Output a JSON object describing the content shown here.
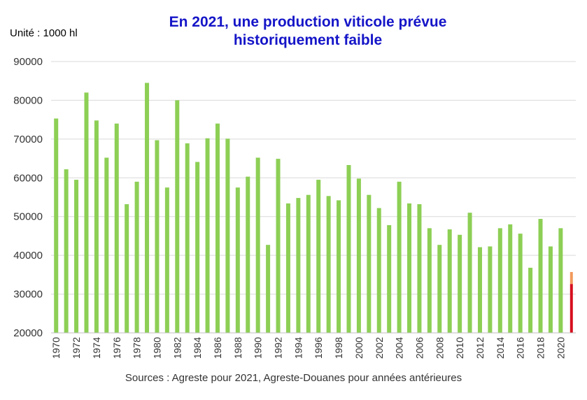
{
  "chart_data": {
    "type": "bar",
    "title_line1": "En 2021, une production viticole prévue",
    "title_line2": "historiquement faible",
    "unit_label": "Unité : 1000 hl",
    "source": "Sources : Agreste pour 2021, Agreste-Douanes pour années antérieures",
    "ylim": [
      20000,
      90000
    ],
    "yticks": [
      20000,
      30000,
      40000,
      50000,
      60000,
      70000,
      80000,
      90000
    ],
    "grid": true,
    "categories": [
      "1970",
      "1971",
      "1972",
      "1973",
      "1974",
      "1975",
      "1976",
      "1977",
      "1978",
      "1979",
      "1980",
      "1981",
      "1982",
      "1983",
      "1984",
      "1985",
      "1986",
      "1987",
      "1988",
      "1989",
      "1990",
      "1991",
      "1992",
      "1993",
      "1994",
      "1995",
      "1996",
      "1997",
      "1998",
      "1999",
      "2000",
      "2001",
      "2002",
      "2003",
      "2004",
      "2005",
      "2006",
      "2007",
      "2008",
      "2009",
      "2010",
      "2011",
      "2012",
      "2013",
      "2014",
      "2015",
      "2016",
      "2017",
      "2018",
      "2019",
      "2020",
      "2021"
    ],
    "xtick_labels": [
      "1970",
      "1972",
      "1974",
      "1976",
      "1978",
      "1980",
      "1982",
      "1984",
      "1986",
      "1988",
      "1990",
      "1992",
      "1994",
      "1996",
      "1998",
      "2000",
      "2002",
      "2004",
      "2006",
      "2008",
      "2010",
      "2012",
      "2014",
      "2016",
      "2018",
      "2020"
    ],
    "values": [
      75300,
      62200,
      59500,
      82000,
      74800,
      65200,
      74000,
      53200,
      59000,
      84500,
      69700,
      57500,
      80000,
      68900,
      64100,
      70200,
      74000,
      70100,
      57500,
      60300,
      65200,
      42700,
      64900,
      53400,
      54800,
      55600,
      59500,
      55300,
      54200,
      63300,
      59800,
      55600,
      52200,
      47800,
      59000,
      53400,
      53200,
      47000,
      42700,
      46700,
      45300,
      51000,
      42100,
      42300,
      47000,
      48000,
      45600,
      36800,
      49400,
      42300,
      47000,
      null
    ],
    "estimate_2021": {
      "low": 32600,
      "high": 35700
    },
    "colors": {
      "bar": "#8dcf55",
      "estimate_low": "#d6101e",
      "estimate_high": "#f29a5d",
      "grid": "#d9d9d9"
    }
  }
}
